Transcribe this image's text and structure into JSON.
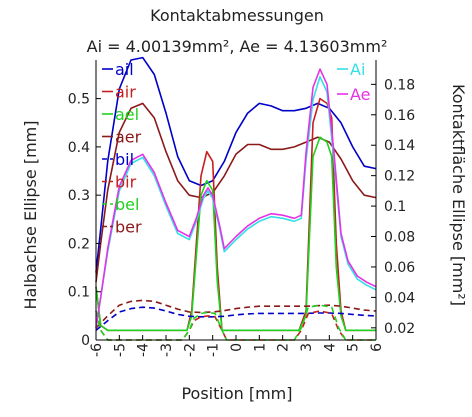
{
  "chart_data": {
    "type": "line",
    "title": "Kontaktabmessungen",
    "subtitle": "Ai = 4.00139mm², Ae = 4.13603mm²",
    "xlabel": "Position [mm]",
    "ylabel_left": "Halbachse Ellipse [mm]",
    "ylabel_right": "Kontaktfläche Ellipse [mm²]",
    "xlim": [
      -6,
      6
    ],
    "ylim_left": [
      0,
      0.58
    ],
    "ylim_right": [
      0.012,
      0.196
    ],
    "x_ticks": [
      -6,
      -5,
      -4,
      -3,
      -2,
      -1,
      0,
      1,
      2,
      3,
      4,
      5,
      6
    ],
    "y_ticks_left": [
      0,
      0.1,
      0.2,
      0.3,
      0.4,
      0.5
    ],
    "y_ticks_right": [
      0.02,
      0.04,
      0.06,
      0.08,
      0.1,
      0.12,
      0.14,
      0.16,
      0.18
    ],
    "legend_left": [
      "ail",
      "air",
      "ael",
      "aer",
      "bil",
      "bir",
      "bel",
      "ber"
    ],
    "legend_right": [
      "Ai",
      "Ae"
    ],
    "series": [
      {
        "name": "ail",
        "axis": "left",
        "color": "#0000c8",
        "dash": "solid",
        "x": [
          -6,
          -5.8,
          -5.5,
          -5,
          -4.5,
          -4,
          -3.5,
          -3,
          -2.5,
          -2,
          -1.5,
          -1,
          -0.5,
          0,
          0.5,
          1,
          1.5,
          2,
          2.5,
          3,
          3.5,
          4,
          4.5,
          5,
          5.5,
          6
        ],
        "y": [
          0.14,
          0.23,
          0.37,
          0.52,
          0.58,
          0.585,
          0.55,
          0.47,
          0.38,
          0.33,
          0.32,
          0.33,
          0.37,
          0.43,
          0.47,
          0.49,
          0.485,
          0.475,
          0.475,
          0.48,
          0.49,
          0.48,
          0.45,
          0.4,
          0.36,
          0.355
        ]
      },
      {
        "name": "aer",
        "axis": "left",
        "color": "#8b1a1a",
        "dash": "solid",
        "x": [
          -6,
          -5.8,
          -5.5,
          -5,
          -4.5,
          -4,
          -3.5,
          -3,
          -2.5,
          -2,
          -1.5,
          -1,
          -0.5,
          0,
          0.5,
          1,
          1.5,
          2,
          2.5,
          3,
          3.5,
          4,
          4.5,
          5,
          5.5,
          6
        ],
        "y": [
          0.12,
          0.2,
          0.31,
          0.43,
          0.48,
          0.49,
          0.46,
          0.39,
          0.33,
          0.3,
          0.295,
          0.305,
          0.34,
          0.385,
          0.405,
          0.405,
          0.395,
          0.395,
          0.4,
          0.41,
          0.42,
          0.41,
          0.375,
          0.33,
          0.3,
          0.295
        ]
      },
      {
        "name": "air",
        "axis": "left",
        "color": "#c81e1e",
        "dash": "solid",
        "x": [
          -6,
          -5.8,
          -5.5,
          -3.5,
          -3,
          -2.5,
          -2.1,
          -1.9,
          -1.5,
          -1.25,
          -1.0,
          -0.8,
          -0.6,
          0,
          2,
          2.4,
          2.7,
          3,
          3.3,
          3.6,
          3.9,
          4.1,
          4.3,
          4.5,
          4.7,
          6
        ],
        "y": [
          0.11,
          0.03,
          0.02,
          0.02,
          0.02,
          0.02,
          0.02,
          0.06,
          0.34,
          0.39,
          0.37,
          0.15,
          0.02,
          0.02,
          0.02,
          0.02,
          0.02,
          0.06,
          0.45,
          0.5,
          0.49,
          0.46,
          0.2,
          0.06,
          0.02,
          0.02
        ]
      },
      {
        "name": "ael",
        "axis": "left",
        "color": "#1ed21e",
        "dash": "solid",
        "x": [
          -6,
          -5.8,
          -5.5,
          -3.5,
          -3,
          -2.5,
          -2.1,
          -1.9,
          -1.5,
          -1.25,
          -1.0,
          -0.8,
          -0.6,
          0,
          2,
          2.4,
          2.7,
          3,
          3.3,
          3.6,
          3.9,
          4.1,
          4.3,
          4.5,
          4.7,
          6
        ],
        "y": [
          0.11,
          0.03,
          0.02,
          0.02,
          0.02,
          0.02,
          0.02,
          0.05,
          0.3,
          0.33,
          0.31,
          0.12,
          0.02,
          0.02,
          0.02,
          0.02,
          0.02,
          0.05,
          0.38,
          0.42,
          0.41,
          0.38,
          0.15,
          0.05,
          0.02,
          0.02
        ]
      },
      {
        "name": "bil",
        "axis": "left",
        "color": "#0000c8",
        "dash": "dash",
        "x": [
          -6,
          -5.5,
          -5,
          -4.5,
          -4,
          -3.5,
          -3,
          -2.5,
          -2,
          -1.5,
          -1,
          -0.5,
          0,
          0.5,
          1,
          1.5,
          2,
          2.5,
          3,
          3.5,
          4,
          4.5,
          5,
          5.5,
          6
        ],
        "y": [
          0.02,
          0.04,
          0.058,
          0.065,
          0.068,
          0.066,
          0.06,
          0.053,
          0.049,
          0.048,
          0.048,
          0.049,
          0.052,
          0.054,
          0.055,
          0.055,
          0.055,
          0.055,
          0.055,
          0.056,
          0.056,
          0.055,
          0.053,
          0.051,
          0.05
        ]
      },
      {
        "name": "ber",
        "axis": "left",
        "color": "#8b1a1a",
        "dash": "dash",
        "x": [
          -6,
          -5.5,
          -5,
          -4.5,
          -4,
          -3.5,
          -3,
          -2.5,
          -2,
          -1.5,
          -1,
          -0.5,
          0,
          0.5,
          1,
          1.5,
          2,
          2.5,
          3,
          3.5,
          4,
          4.5,
          5,
          5.5,
          6
        ],
        "y": [
          0.025,
          0.05,
          0.072,
          0.08,
          0.082,
          0.08,
          0.072,
          0.064,
          0.058,
          0.057,
          0.058,
          0.061,
          0.065,
          0.068,
          0.07,
          0.07,
          0.07,
          0.07,
          0.07,
          0.071,
          0.072,
          0.07,
          0.066,
          0.062,
          0.06
        ]
      },
      {
        "name": "bir",
        "axis": "left",
        "color": "#c81e1e",
        "dash": "dash",
        "x": [
          -6,
          -5.8,
          -5.5,
          -3,
          -2.3,
          -2.0,
          -1.8,
          -1.5,
          -1.2,
          -0.9,
          -0.6,
          -0.4,
          0,
          2,
          2.5,
          2.8,
          3.1,
          3.6,
          4.1,
          4.4,
          4.7,
          6
        ],
        "y": [
          0.06,
          0.02,
          0.0,
          0.0,
          0.0,
          0.02,
          0.04,
          0.048,
          0.05,
          0.048,
          0.02,
          0.0,
          0.0,
          0.0,
          0.0,
          0.02,
          0.055,
          0.06,
          0.055,
          0.02,
          0.0,
          0.0
        ]
      },
      {
        "name": "bel",
        "axis": "left",
        "color": "#1ed21e",
        "dash": "dash",
        "x": [
          -6,
          -5.8,
          -5.5,
          -3,
          -2.3,
          -2.0,
          -1.8,
          -1.5,
          -1.2,
          -0.9,
          -0.6,
          -0.4,
          0,
          2,
          2.5,
          2.8,
          3.1,
          3.6,
          4.1,
          4.4,
          4.7,
          6
        ],
        "y": [
          0.06,
          0.02,
          0.0,
          0.0,
          0.0,
          0.02,
          0.045,
          0.055,
          0.057,
          0.055,
          0.02,
          0.0,
          0.0,
          0.0,
          0.0,
          0.025,
          0.068,
          0.072,
          0.068,
          0.025,
          0.0,
          0.0
        ]
      },
      {
        "name": "Ai",
        "axis": "right",
        "color": "#33e0e6",
        "dash": "solid",
        "x": [
          -6,
          -5.8,
          -5.5,
          -5,
          -4.5,
          -4,
          -3.5,
          -3,
          -2.5,
          -2,
          -1.7,
          -1.4,
          -1.2,
          -1.0,
          -0.7,
          -0.5,
          0,
          0.5,
          1,
          1.5,
          2,
          2.5,
          2.8,
          3.0,
          3.3,
          3.6,
          3.9,
          4.2,
          4.5,
          4.8,
          5.2,
          5.6,
          6
        ],
        "y": [
          0.02,
          0.04,
          0.07,
          0.11,
          0.128,
          0.132,
          0.12,
          0.1,
          0.082,
          0.078,
          0.09,
          0.105,
          0.11,
          0.105,
          0.085,
          0.07,
          0.078,
          0.085,
          0.09,
          0.093,
          0.092,
          0.09,
          0.092,
          0.13,
          0.17,
          0.185,
          0.175,
          0.13,
          0.08,
          0.062,
          0.052,
          0.048,
          0.045
        ]
      },
      {
        "name": "Ae",
        "axis": "right",
        "color": "#e632e6",
        "dash": "solid",
        "x": [
          -6,
          -5.8,
          -5.5,
          -5,
          -4.5,
          -4,
          -3.5,
          -3,
          -2.5,
          -2,
          -1.7,
          -1.4,
          -1.2,
          -1.0,
          -0.7,
          -0.5,
          0,
          0.5,
          1,
          1.5,
          2,
          2.5,
          2.8,
          3.0,
          3.3,
          3.6,
          3.9,
          4.2,
          4.5,
          4.8,
          5.2,
          5.6,
          6
        ],
        "y": [
          0.02,
          0.04,
          0.072,
          0.113,
          0.13,
          0.134,
          0.122,
          0.102,
          0.084,
          0.08,
          0.092,
          0.107,
          0.112,
          0.107,
          0.087,
          0.072,
          0.08,
          0.087,
          0.092,
          0.095,
          0.094,
          0.092,
          0.094,
          0.135,
          0.178,
          0.19,
          0.18,
          0.135,
          0.082,
          0.064,
          0.054,
          0.05,
          0.047
        ]
      }
    ]
  }
}
